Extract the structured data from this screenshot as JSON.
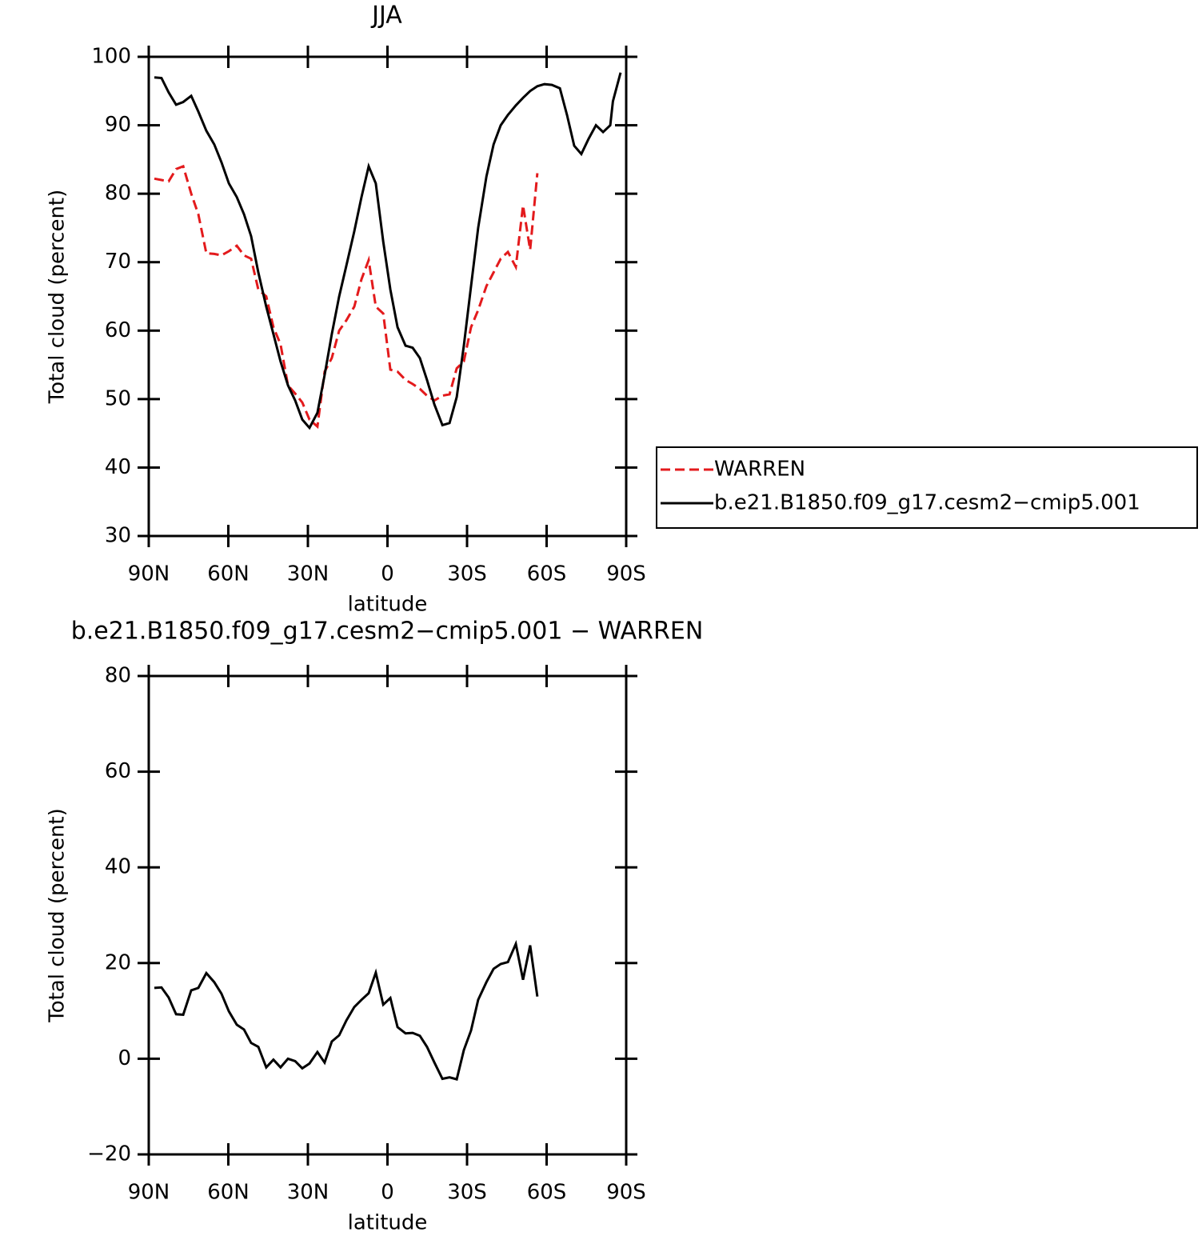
{
  "chart_data": [
    {
      "type": "line",
      "title": "JJA",
      "xlabel": "latitude",
      "ylabel": "Total cloud (percent)",
      "x": [
        87.9,
        85.2,
        82.5,
        79.7,
        77,
        74,
        71.3,
        68.3,
        65.3,
        62.6,
        59.8,
        56.8,
        54.1,
        51.4,
        48.7,
        45.7,
        43,
        40.3,
        37.5,
        34.8,
        32.1,
        29.4,
        26.4,
        23.7,
        21,
        18.2,
        15.5,
        12.5,
        9.8,
        7.1,
        4.4,
        1.6,
        -1.1,
        -3.8,
        -6.8,
        -9.5,
        -12.2,
        -14.9,
        -17.7,
        -20.7,
        -23.4,
        -26.1,
        -28.8,
        -31.5,
        -34.2,
        -37.3,
        -40,
        -42.7,
        -45.4,
        -48.4,
        -51.1,
        -53.8,
        -56.5,
        -59.2,
        -62,
        -65,
        -67.7,
        -70.4,
        -73.1,
        -75.8,
        -78.6,
        -81.3,
        -84,
        -85,
        -87.9
      ],
      "series": [
        {
          "name": "WARREN",
          "color": "#e31a1c",
          "linestyle": "dashed",
          "values": [
            82.2,
            82.0,
            81.8,
            83.6,
            84.0,
            80.0,
            77.0,
            71.3,
            71.2,
            71.0,
            71.6,
            72.4,
            71.0,
            70.5,
            66.0,
            65.0,
            60.5,
            58.0,
            52.0,
            50.8,
            49.5,
            47.0,
            46.0,
            54.0,
            56.0,
            60.0,
            61.5,
            63.5,
            67.5,
            70.3,
            63.5,
            62.5,
            54.3,
            54.0,
            52.8,
            52.2,
            51.5,
            50.5,
            49.8,
            50.5,
            50.7,
            54.5,
            55.5,
            60.5,
            63.0,
            66.5,
            68.5,
            70.5,
            71.5,
            69.3,
            78.3,
            71.8,
            83.0,
            null,
            null,
            null,
            null,
            null,
            null,
            null,
            null,
            null,
            null,
            null,
            null
          ]
        },
        {
          "name": "b.e21.B1850.f09_g17.cesm2−cmip5.001",
          "color": "#000000",
          "linestyle": "solid",
          "values": [
            97.0,
            96.9,
            94.8,
            93.0,
            93.4,
            94.3,
            92.0,
            89.2,
            87.2,
            84.6,
            81.5,
            79.5,
            77.0,
            73.8,
            68.5,
            63.5,
            59.5,
            55.5,
            52.0,
            49.8,
            47.0,
            45.8,
            48.0,
            53.5,
            59.5,
            65.0,
            69.5,
            74.5,
            79.5,
            84.0,
            81.5,
            73.0,
            66.0,
            60.5,
            57.8,
            57.5,
            56.0,
            52.8,
            49.2,
            46.2,
            46.5,
            50.3,
            57.8,
            66.5,
            75.0,
            82.5,
            87.2,
            90.0,
            91.5,
            92.9,
            94.0,
            95.0,
            95.7,
            96.0,
            95.9,
            95.4,
            91.5,
            87.0,
            85.8,
            88.0,
            90.0,
            89.0,
            90.0,
            93.5,
            97.7
          ]
        }
      ],
      "xlim": [
        90,
        -90
      ],
      "ylim": [
        30,
        100
      ],
      "xticks": [
        {
          "value": 90,
          "label": "90N"
        },
        {
          "value": 60,
          "label": "60N"
        },
        {
          "value": 30,
          "label": "30N"
        },
        0,
        {
          "value": -30,
          "label": "30S"
        },
        {
          "value": -60,
          "label": "60S"
        },
        {
          "value": -90,
          "label": "90S"
        }
      ],
      "yticks": [
        30,
        40,
        50,
        60,
        70,
        80,
        90,
        100
      ],
      "legend": "right"
    },
    {
      "type": "line",
      "title": "b.e21.B1850.f09_g17.cesm2−cmip5.001 − WARREN",
      "xlabel": "latitude",
      "ylabel": "Total cloud (percent)",
      "x": [
        87.9,
        85.2,
        82.5,
        79.7,
        77,
        74,
        71.3,
        68.3,
        65.3,
        62.6,
        59.8,
        56.8,
        54.1,
        51.4,
        48.7,
        45.7,
        43,
        40.3,
        37.5,
        34.8,
        32.1,
        29.4,
        26.4,
        23.7,
        21,
        18.2,
        15.5,
        12.5,
        9.8,
        7.1,
        4.4,
        1.6,
        -1.1,
        -3.8,
        -6.8,
        -9.5,
        -12.2,
        -14.9,
        -17.7,
        -20.7,
        -23.4,
        -26.1,
        -28.8,
        -31.5,
        -34.2,
        -37.3,
        -40,
        -42.7,
        -45.4,
        -48.4,
        -51.1,
        -53.8,
        -56.5
      ],
      "series": [
        {
          "color": "#000000",
          "linestyle": "solid",
          "values": [
            14.8,
            14.9,
            12.8,
            9.3,
            9.2,
            14.3,
            14.8,
            17.9,
            16.0,
            13.6,
            9.9,
            7.1,
            6.1,
            3.3,
            2.5,
            -1.8,
            -0.2,
            -1.8,
            0.0,
            -0.5,
            -2.0,
            -1.0,
            1.4,
            -0.8,
            3.6,
            4.9,
            8.0,
            10.8,
            12.3,
            13.7,
            18.0,
            11.3,
            12.7,
            6.6,
            5.3,
            5.4,
            4.8,
            2.5,
            -0.8,
            -4.2,
            -3.9,
            -4.3,
            1.8,
            5.9,
            12.3,
            16.0,
            18.8,
            19.8,
            20.2,
            24.0,
            16.5,
            23.7,
            13.0
          ]
        }
      ],
      "xlim": [
        90,
        -90
      ],
      "ylim": [
        -20,
        80
      ],
      "xticks": [
        {
          "value": 90,
          "label": "90N"
        },
        {
          "value": 60,
          "label": "60N"
        },
        {
          "value": 30,
          "label": "30N"
        },
        0,
        {
          "value": -30,
          "label": "30S"
        },
        {
          "value": -60,
          "label": "60S"
        },
        {
          "value": -90,
          "label": "90S"
        }
      ],
      "yticks": [
        {
          "value": -20,
          "label": "−20"
        },
        0,
        20,
        40,
        60,
        80
      ]
    }
  ]
}
